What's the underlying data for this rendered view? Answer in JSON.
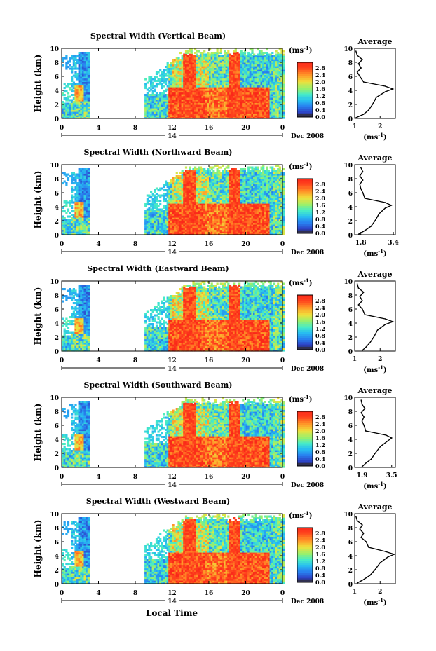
{
  "figure": {
    "xlabel": "Local Time",
    "date_label": "Dec 2008",
    "day_label": "14",
    "colorbar_unit_prefix": "(ms",
    "colorbar_unit_exp": "-1",
    "colorbar_unit_suffix": ")",
    "avg_title": "Average",
    "avg_xlabel_prefix": "(ms",
    "avg_xlabel_exp": "-1",
    "avg_xlabel_suffix": ")",
    "ylabel": "Height (km)",
    "colorbar_ticks": [
      "2.8",
      "2.4",
      "2.0",
      "1.6",
      "1.2",
      "0.8",
      "0.4",
      "0.0"
    ],
    "colorbar_colors": [
      "#ff3a1e",
      "#ff8a2a",
      "#f7d238",
      "#b8f05a",
      "#4ff0c8",
      "#2cb8f0",
      "#2a6cf0",
      "#3a3aa0",
      "#303050"
    ]
  },
  "chart_data": [
    {
      "type": "heatmap",
      "title": "Spectral Width (Vertical Beam)",
      "xlabel": "Local Time",
      "ylabel": "Height (km)",
      "xlim": [
        0,
        24
      ],
      "ylim": [
        0,
        10
      ],
      "x_ticks": [
        "0",
        "4",
        "8",
        "12",
        "16",
        "20",
        "0"
      ],
      "y_ticks": [
        "0",
        "2",
        "4",
        "6",
        "8",
        "10"
      ],
      "colorbar_range": [
        0,
        2.8
      ],
      "average_profile": {
        "title": "Average",
        "xlim": [
          1,
          2.6
        ],
        "x_ticks": [
          "1",
          "2"
        ],
        "height": [
          0.1,
          0.6,
          1.2,
          2,
          3,
          3.8,
          4.2,
          4.6,
          5.2,
          6,
          6.6,
          7.2,
          7.8,
          8.4,
          9,
          9.6
        ],
        "values": [
          1.05,
          1.35,
          1.55,
          1.7,
          1.85,
          2.2,
          2.5,
          2.2,
          1.35,
          1.2,
          1.1,
          1.25,
          1.15,
          1.3,
          1.1,
          1.05
        ]
      }
    },
    {
      "type": "heatmap",
      "title": "Spectral Width (Northward Beam)",
      "xlabel": "Local Time",
      "ylabel": "Height (km)",
      "xlim": [
        0,
        24
      ],
      "ylim": [
        0,
        10
      ],
      "x_ticks": [
        "0",
        "4",
        "8",
        "12",
        "16",
        "20",
        "0"
      ],
      "y_ticks": [
        "0",
        "2",
        "4",
        "6",
        "8",
        "10"
      ],
      "colorbar_range": [
        0,
        2.8
      ],
      "average_profile": {
        "title": "Average",
        "xlim": [
          1.5,
          3.5
        ],
        "x_ticks": [
          "1.8",
          "3.4"
        ],
        "height": [
          0.1,
          0.6,
          1.2,
          2,
          3,
          3.8,
          4.2,
          4.6,
          5.2,
          6,
          6.6,
          7.2,
          7.8,
          8.4,
          9,
          9.6
        ],
        "values": [
          1.7,
          2.0,
          2.3,
          2.5,
          2.7,
          3.0,
          3.3,
          3.0,
          2.0,
          1.9,
          1.8,
          1.75,
          1.9,
          1.75,
          1.9,
          1.8
        ]
      }
    },
    {
      "type": "heatmap",
      "title": "Spectral Width (Eastward Beam)",
      "xlabel": "Local Time",
      "ylabel": "Height (km)",
      "xlim": [
        0,
        24
      ],
      "ylim": [
        0,
        10
      ],
      "x_ticks": [
        "0",
        "4",
        "8",
        "12",
        "16",
        "20",
        "0"
      ],
      "y_ticks": [
        "0",
        "2",
        "4",
        "6",
        "8",
        "10"
      ],
      "colorbar_range": [
        0,
        2.8
      ],
      "average_profile": {
        "title": "Average",
        "xlim": [
          1,
          2.6
        ],
        "x_ticks": [
          "1",
          "2"
        ],
        "height": [
          0.1,
          0.6,
          1.2,
          2,
          3,
          3.8,
          4.2,
          4.6,
          5.2,
          6,
          6.6,
          7.2,
          7.8,
          8.4,
          9,
          9.6
        ],
        "values": [
          1.3,
          1.45,
          1.6,
          1.75,
          1.9,
          2.2,
          2.5,
          2.2,
          1.4,
          1.3,
          1.15,
          1.3,
          1.2,
          1.35,
          1.15,
          1.1
        ]
      }
    },
    {
      "type": "heatmap",
      "title": "Spectral Width (Southward Beam)",
      "xlabel": "Local Time",
      "ylabel": "Height (km)",
      "xlim": [
        0,
        24
      ],
      "ylim": [
        0,
        10
      ],
      "x_ticks": [
        "0",
        "4",
        "8",
        "12",
        "16",
        "20",
        "0"
      ],
      "y_ticks": [
        "0",
        "2",
        "4",
        "6",
        "8",
        "10"
      ],
      "colorbar_range": [
        0,
        2.8
      ],
      "average_profile": {
        "title": "Average",
        "xlim": [
          1.5,
          3.7
        ],
        "x_ticks": [
          "1.9",
          "3.5"
        ],
        "height": [
          0.1,
          0.6,
          1.2,
          2,
          3,
          3.8,
          4.2,
          4.6,
          5.2,
          6,
          6.6,
          7.2,
          7.8,
          8.4,
          9,
          9.6
        ],
        "values": [
          1.9,
          2.1,
          2.4,
          2.6,
          2.9,
          3.3,
          3.5,
          3.2,
          2.1,
          2.0,
          1.9,
          2.0,
          1.85,
          2.05,
          1.9,
          1.85
        ]
      }
    },
    {
      "type": "heatmap",
      "title": "Spectral Width (Westward Beam)",
      "xlabel": "Local Time",
      "ylabel": "Height (km)",
      "xlim": [
        0,
        24
      ],
      "ylim": [
        0,
        10
      ],
      "x_ticks": [
        "0",
        "4",
        "8",
        "12",
        "16",
        "20",
        "0"
      ],
      "y_ticks": [
        "0",
        "2",
        "4",
        "6",
        "8",
        "10"
      ],
      "colorbar_range": [
        0,
        2.8
      ],
      "average_profile": {
        "title": "Average",
        "xlim": [
          1,
          2.6
        ],
        "x_ticks": [
          "1",
          "2"
        ],
        "height": [
          0.1,
          0.6,
          1.2,
          2,
          3,
          3.8,
          4.2,
          4.6,
          5.2,
          6,
          6.6,
          7.2,
          7.8,
          8.4,
          9,
          9.6
        ],
        "values": [
          1.1,
          1.35,
          1.6,
          1.8,
          2.0,
          2.3,
          2.55,
          2.2,
          1.55,
          1.45,
          1.25,
          1.35,
          1.2,
          1.3,
          1.1,
          1.05
        ]
      }
    }
  ]
}
